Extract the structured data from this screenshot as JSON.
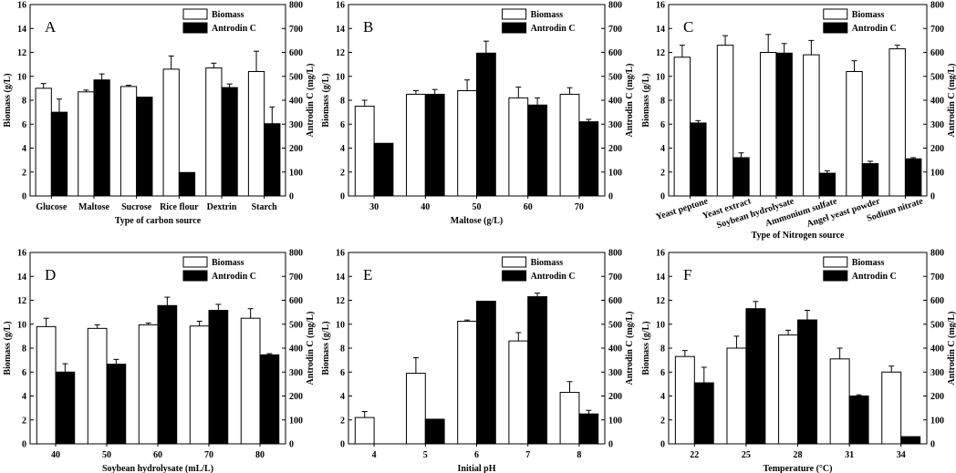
{
  "colors": {
    "biomass_fill": "#ffffff",
    "antrodin_fill": "#000000",
    "axis": "#000000"
  },
  "chart_data": [
    {
      "type": "bar",
      "panel": "A",
      "categories": [
        "Glucose",
        "Maltose",
        "Sucrose",
        "Rice flour",
        "Dextrin",
        "Starch"
      ],
      "xlabel": "Type of carbon source",
      "ylabel": "Biomass (g/L)",
      "y2label": "Antrodin C (mg/L)",
      "ylim": [
        0,
        16
      ],
      "y2lim": [
        0,
        800
      ],
      "yticks": [
        "0",
        "2",
        "4",
        "6",
        "8",
        "10",
        "12",
        "14",
        "16"
      ],
      "y2ticks": [
        "0",
        "100",
        "200",
        "300",
        "400",
        "500",
        "600",
        "700",
        "800"
      ],
      "legend_position": "top-right",
      "series": [
        {
          "name": "Biomass",
          "axis": "left",
          "values": [
            9.0,
            8.7,
            9.15,
            10.6,
            10.7,
            10.4
          ],
          "errors": [
            0.4,
            0.15,
            0.1,
            1.1,
            0.4,
            1.7
          ]
        },
        {
          "name": "Antrodin C",
          "axis": "right",
          "values": [
            350,
            485,
            413,
            98,
            453,
            302
          ],
          "errors": [
            55,
            25,
            0,
            0,
            15,
            70
          ]
        }
      ]
    },
    {
      "type": "bar",
      "panel": "B",
      "categories": [
        "30",
        "40",
        "50",
        "60",
        "70"
      ],
      "xlabel": "Maltose (g/L)",
      "ylabel": "Biomass (g/L)",
      "y2label": "Antrodin C (mg/L)",
      "ylim": [
        0,
        16
      ],
      "y2lim": [
        0,
        800
      ],
      "yticks": [
        "0",
        "2",
        "4",
        "6",
        "8",
        "10",
        "12",
        "14",
        "16"
      ],
      "y2ticks": [
        "0",
        "100",
        "200",
        "300",
        "400",
        "500",
        "600",
        "700",
        "800"
      ],
      "legend_position": "top-right",
      "series": [
        {
          "name": "Biomass",
          "axis": "left",
          "values": [
            7.5,
            8.5,
            8.8,
            8.2,
            8.5
          ],
          "errors": [
            0.5,
            0.3,
            0.9,
            0.9,
            0.55
          ]
        },
        {
          "name": "Antrodin C",
          "axis": "right",
          "values": [
            220,
            425,
            597,
            380,
            310
          ],
          "errors": [
            0,
            20,
            50,
            30,
            10
          ]
        }
      ]
    },
    {
      "type": "bar",
      "panel": "C",
      "categories": [
        "Yeast peptone",
        "Yeast extract",
        "Soybean hydrolysate",
        "Ammonium sulfate",
        "Angel yeast powder",
        "Sodium nitrate"
      ],
      "xlabel": "Type of Nitrogen source",
      "ylabel": "Biomass (g/L)",
      "y2label": "Antrodin C (mg/L)",
      "ylim": [
        0,
        16
      ],
      "y2lim": [
        0,
        800
      ],
      "yticks": [
        "0",
        "2",
        "4",
        "6",
        "8",
        "10",
        "12",
        "14",
        "16"
      ],
      "y2ticks": [
        "0",
        "100",
        "200",
        "300",
        "400",
        "500",
        "600",
        "700",
        "800"
      ],
      "legend_position": "top-right",
      "series": [
        {
          "name": "Biomass",
          "axis": "left",
          "values": [
            11.6,
            12.6,
            12.0,
            11.8,
            10.4,
            12.3
          ],
          "errors": [
            1.0,
            0.8,
            1.5,
            1.2,
            0.9,
            0.3
          ]
        },
        {
          "name": "Antrodin C",
          "axis": "right",
          "values": [
            305,
            160,
            597,
            95,
            135,
            155
          ],
          "errors": [
            10,
            20,
            40,
            10,
            10,
            5
          ]
        }
      ]
    },
    {
      "type": "bar",
      "panel": "D",
      "categories": [
        "40",
        "50",
        "60",
        "70",
        "80"
      ],
      "xlabel": "Soybean hydrolysate (mL/L)",
      "ylabel": "Biomass (g/L)",
      "y2label": "Antrodin C (mg/L)",
      "ylim": [
        0,
        16
      ],
      "y2lim": [
        0,
        800
      ],
      "yticks": [
        "0",
        "2",
        "4",
        "6",
        "8",
        "10",
        "12",
        "14",
        "16"
      ],
      "y2ticks": [
        "0",
        "100",
        "200",
        "300",
        "400",
        "500",
        "600",
        "700",
        "800"
      ],
      "legend_position": "top-right",
      "series": [
        {
          "name": "Biomass",
          "axis": "left",
          "values": [
            9.8,
            9.65,
            9.95,
            9.85,
            10.5
          ],
          "errors": [
            0.7,
            0.3,
            0.15,
            0.4,
            0.8
          ]
        },
        {
          "name": "Antrodin C",
          "axis": "right",
          "values": [
            300,
            333,
            578,
            558,
            372
          ],
          "errors": [
            35,
            20,
            35,
            25,
            5
          ]
        }
      ]
    },
    {
      "type": "bar",
      "panel": "E",
      "categories": [
        "4",
        "5",
        "6",
        "7",
        "8"
      ],
      "xlabel": "Initial pH",
      "ylabel": "Biomass (g/L)",
      "y2label": "Antrodin C (mg/L)",
      "ylim": [
        0,
        16
      ],
      "y2lim": [
        0,
        800
      ],
      "yticks": [
        "0",
        "2",
        "4",
        "6",
        "8",
        "10",
        "12",
        "14",
        "16"
      ],
      "y2ticks": [
        "0",
        "100",
        "200",
        "300",
        "400",
        "500",
        "600",
        "700",
        "800"
      ],
      "legend_position": "top-right",
      "series": [
        {
          "name": "Biomass",
          "axis": "left",
          "values": [
            2.2,
            5.9,
            10.25,
            8.6,
            4.3
          ],
          "errors": [
            0.5,
            1.3,
            0.1,
            0.7,
            0.9
          ]
        },
        {
          "name": "Antrodin C",
          "axis": "right",
          "values": [
            0,
            103,
            596,
            615,
            125
          ],
          "errors": [
            0,
            0,
            0,
            15,
            15
          ]
        }
      ]
    },
    {
      "type": "bar",
      "panel": "F",
      "categories": [
        "22",
        "25",
        "28",
        "31",
        "34"
      ],
      "xlabel": "Temperature (°C)",
      "ylabel": "Biomass (g/L)",
      "y2label": "Antrodin C (mg/L)",
      "ylim": [
        0,
        16
      ],
      "y2lim": [
        0,
        800
      ],
      "yticks": [
        "0",
        "2",
        "4",
        "6",
        "8",
        "10",
        "12",
        "14",
        "16"
      ],
      "y2ticks": [
        "0",
        "100",
        "200",
        "300",
        "400",
        "500",
        "600",
        "700",
        "800"
      ],
      "legend_position": "top-right",
      "series": [
        {
          "name": "Biomass",
          "axis": "left",
          "values": [
            7.3,
            8.0,
            9.1,
            7.1,
            6.0
          ],
          "errors": [
            0.5,
            1.0,
            0.4,
            0.9,
            0.5
          ]
        },
        {
          "name": "Antrodin C",
          "axis": "right",
          "values": [
            255,
            565,
            518,
            200,
            30
          ],
          "errors": [
            65,
            30,
            40,
            5,
            0
          ]
        }
      ]
    }
  ]
}
